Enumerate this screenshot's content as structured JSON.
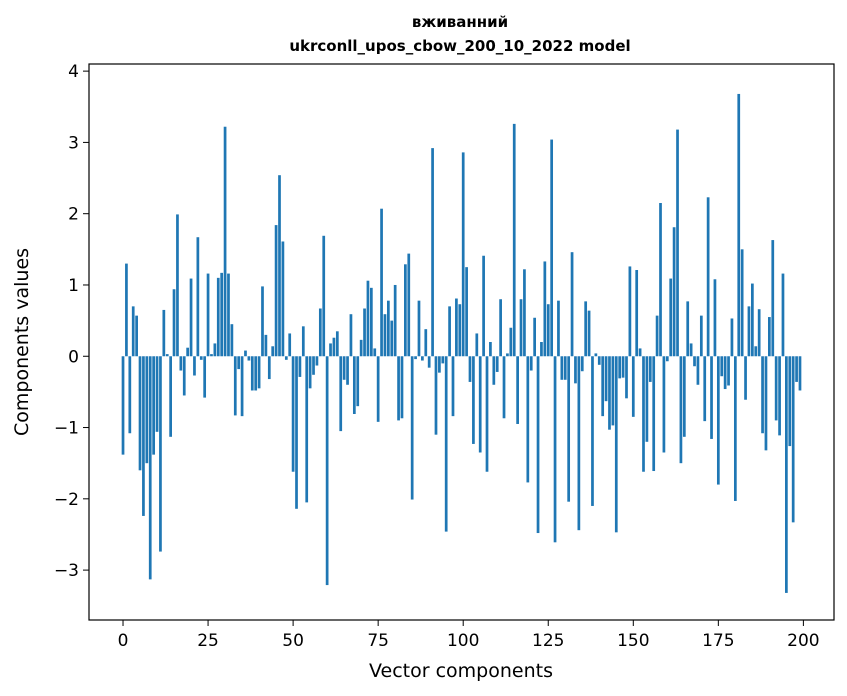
{
  "chart_data": {
    "type": "bar",
    "title": [
      "вживанний",
      "ukrconll_upos_cbow_200_10_2022 model"
    ],
    "xlabel": "Vector components",
    "ylabel": "Components values",
    "xlim": [
      -10,
      209
    ],
    "ylim": [
      -3.7,
      4.1
    ],
    "xticks": [
      0,
      25,
      50,
      75,
      100,
      125,
      150,
      175,
      200
    ],
    "yticks": [
      -3,
      -2,
      -1,
      0,
      1,
      2,
      3,
      4
    ],
    "ytick_labels": [
      "−3",
      "−2",
      "−1",
      "0",
      "1",
      "2",
      "3",
      "4"
    ],
    "grid": false,
    "bar_color": "#1f77b4",
    "values": [
      -1.38,
      1.3,
      -1.08,
      0.7,
      0.57,
      -1.6,
      -2.24,
      -1.5,
      -3.13,
      -1.38,
      -1.06,
      -2.74,
      0.65,
      0.03,
      -1.13,
      0.94,
      1.99,
      -0.2,
      -0.55,
      0.12,
      1.09,
      -0.27,
      1.67,
      -0.05,
      -0.58,
      1.16,
      0.03,
      0.18,
      1.1,
      1.17,
      3.22,
      1.16,
      0.45,
      -0.83,
      -0.18,
      -0.84,
      0.08,
      -0.06,
      -0.48,
      -0.48,
      -0.45,
      0.98,
      0.3,
      -0.32,
      0.14,
      1.84,
      2.54,
      1.61,
      -0.05,
      0.32,
      -1.62,
      -2.14,
      -0.29,
      0.42,
      -2.05,
      -0.45,
      -0.26,
      -0.13,
      0.67,
      1.69,
      -3.21,
      0.18,
      0.26,
      0.35,
      -1.05,
      -0.33,
      -0.4,
      0.59,
      -0.81,
      -0.7,
      0.23,
      0.67,
      1.06,
      0.96,
      0.11,
      -0.92,
      2.07,
      0.59,
      0.78,
      0.5,
      1.0,
      -0.9,
      -0.87,
      1.29,
      1.44,
      -2.01,
      -0.04,
      0.78,
      -0.06,
      0.38,
      -0.16,
      2.92,
      -1.1,
      -0.23,
      -0.1,
      -2.46,
      0.7,
      -0.84,
      0.81,
      0.73,
      2.86,
      1.25,
      -0.36,
      -1.23,
      0.32,
      -1.35,
      1.41,
      -1.62,
      0.2,
      -0.4,
      -0.22,
      0.8,
      -0.87,
      0.04,
      0.4,
      3.26,
      -0.95,
      0.8,
      1.22,
      -1.77,
      -0.2,
      0.54,
      -2.48,
      0.2,
      1.33,
      0.73,
      3.04,
      -2.61,
      0.78,
      -0.33,
      -0.33,
      -2.04,
      1.46,
      -0.38,
      -2.44,
      -0.21,
      0.77,
      0.64,
      -2.1,
      0.04,
      -0.12,
      -0.84,
      -0.63,
      -1.03,
      -0.97,
      -2.47,
      -0.31,
      -0.3,
      -0.59,
      1.26,
      -0.85,
      1.21,
      0.11,
      -1.62,
      -1.2,
      -0.36,
      -1.61,
      0.57,
      2.15,
      -1.35,
      -0.07,
      1.09,
      1.81,
      3.18,
      -1.5,
      -1.13,
      0.77,
      0.18,
      -0.14,
      -0.4,
      0.57,
      -0.91,
      2.23,
      -1.16,
      1.08,
      -1.8,
      -0.28,
      -0.46,
      -0.41,
      0.53,
      -2.03,
      3.68,
      1.5,
      -0.61,
      0.7,
      1.02,
      0.14,
      0.66,
      -1.08,
      -1.32,
      0.55,
      1.63,
      -0.9,
      -1.11,
      1.16,
      -3.32,
      -1.26,
      -2.33,
      -0.36,
      -0.48
    ]
  }
}
